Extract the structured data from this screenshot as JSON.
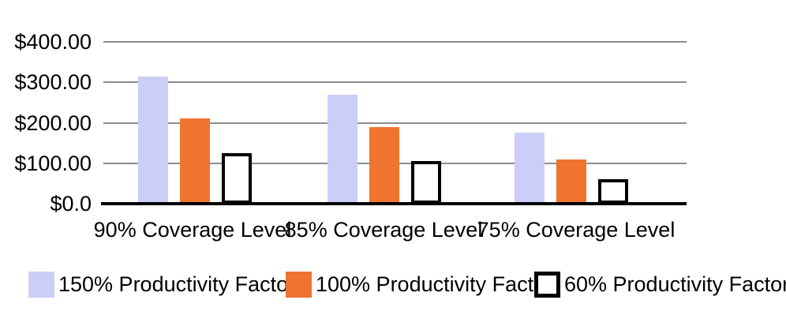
{
  "chart_data": {
    "type": "bar",
    "title": "",
    "categories": [
      "90% Coverage Level",
      "85% Coverage Level",
      "75% Coverage Level"
    ],
    "series": [
      {
        "name": "150% Productivity Factor",
        "color": "#CBCEF6",
        "values": [
          315,
          270,
          175
        ]
      },
      {
        "name": "100% Productivity Factor",
        "color": "#EF7430",
        "values": [
          210,
          190,
          110
        ]
      },
      {
        "name": "60% Productivity Factor",
        "color": "#FFFFFF",
        "border_color": "#000000",
        "values": [
          125,
          105,
          60
        ]
      }
    ],
    "y_ticks": [
      "$400.00",
      "$300.00",
      "$200.00",
      "$100.00",
      "$0.0"
    ],
    "ylim": [
      0,
      400
    ],
    "grid": true,
    "gridline_color": "#8C8C8C",
    "axis_color": "#000000",
    "background": "#FFFFFF",
    "legend_position": "bottom"
  }
}
